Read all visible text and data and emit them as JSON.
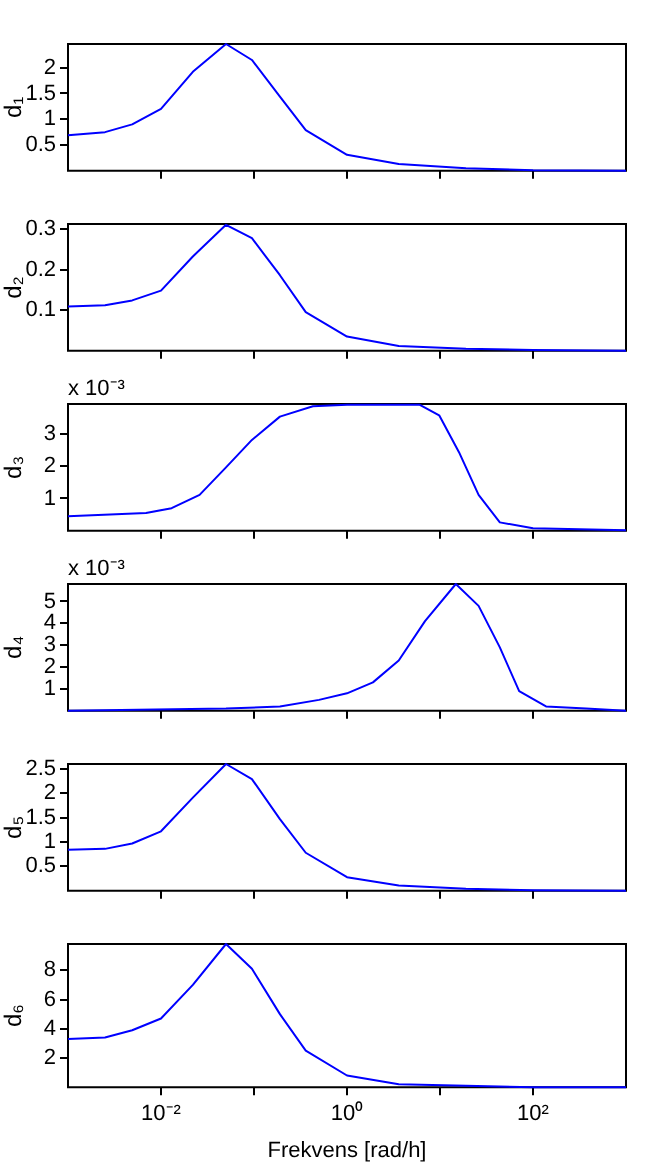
{
  "chart_data": [
    {
      "type": "line",
      "ylabel": "d₁",
      "x": [
        0.001,
        0.0025,
        0.0049,
        0.01,
        0.022,
        0.05,
        0.095,
        0.19,
        0.36,
        1,
        3.6,
        19,
        100,
        1000
      ],
      "series": [
        {
          "color": "#0000ff",
          "values": [
            0.69,
            0.75,
            0.9,
            1.2,
            1.92,
            2.46,
            2.15,
            1.44,
            0.79,
            0.31,
            0.13,
            0.05,
            0.01,
            0
          ]
        }
      ],
      "log": "x",
      "xlim": [
        0.001,
        1000
      ],
      "xticks": [
        {
          "value": 0.01,
          "label": null
        },
        {
          "value": 0.1,
          "label": null
        },
        {
          "value": 1,
          "label": null
        },
        {
          "value": 10,
          "label": null
        },
        {
          "value": 100,
          "label": null
        }
      ],
      "ylim": [
        0,
        2.46
      ],
      "yticks": [
        0.5,
        1,
        1.5,
        2
      ],
      "tick_labels": "y",
      "marker": "none"
    },
    {
      "type": "line",
      "ylabel": "d₂",
      "x": [
        0.001,
        0.0025,
        0.0049,
        0.01,
        0.022,
        0.05,
        0.095,
        0.19,
        0.36,
        1,
        3.6,
        19,
        100,
        1000
      ],
      "series": [
        {
          "color": "#0000ff",
          "values": [
            0.109,
            0.112,
            0.124,
            0.148,
            0.232,
            0.31,
            0.277,
            0.186,
            0.095,
            0.035,
            0.012,
            0.005,
            0.002,
            0
          ]
        }
      ],
      "log": "x",
      "xlim": [
        0.001,
        1000
      ],
      "xticks": [
        {
          "value": 0.01,
          "label": null
        },
        {
          "value": 0.1,
          "label": null
        },
        {
          "value": 1,
          "label": null
        },
        {
          "value": 10,
          "label": null
        },
        {
          "value": 100,
          "label": null
        }
      ],
      "ylim": [
        0,
        0.312
      ],
      "yticks": [
        0.1,
        0.2,
        0.3
      ],
      "tick_labels": "y",
      "marker": "none"
    },
    {
      "type": "line",
      "ylabel": "d₃",
      "annotations": [
        "x 10⁻³"
      ],
      "x": [
        0.001,
        0.0069,
        0.013,
        0.026,
        0.05,
        0.095,
        0.19,
        0.43,
        1,
        6,
        9.8,
        16,
        26,
        44,
        100,
        1000
      ],
      "series": [
        {
          "color": "#0000ff",
          "values": [
            0.45,
            0.55,
            0.7,
            1.11,
            1.96,
            2.81,
            3.53,
            3.85,
            3.9,
            3.9,
            3.57,
            2.43,
            1.11,
            0.26,
            0.08,
            0.02
          ]
        }
      ],
      "log": "x",
      "xlim": [
        0.001,
        1000
      ],
      "xticks": [
        {
          "value": 0.01,
          "label": null
        },
        {
          "value": 0.1,
          "label": null
        },
        {
          "value": 1,
          "label": null
        },
        {
          "value": 10,
          "label": null
        },
        {
          "value": 100,
          "label": null
        }
      ],
      "ylim": [
        0,
        3.92
      ],
      "yticks": [
        1,
        2,
        3
      ],
      "tick_labels": "y",
      "marker": "none"
    },
    {
      "type": "line",
      "ylabel": "d₄",
      "annotations": [
        "x 10⁻³"
      ],
      "x": [
        0.001,
        0.05,
        0.19,
        0.5,
        1,
        1.9,
        3.6,
        6.9,
        14.8,
        26,
        44,
        71,
        138,
        372,
        1000
      ],
      "series": [
        {
          "color": "#0000ff",
          "values": [
            0,
            0.1,
            0.2,
            0.5,
            0.8,
            1.3,
            2.3,
            4.1,
            5.8,
            4.8,
            2.9,
            0.9,
            0.2,
            0.1,
            0
          ]
        }
      ],
      "log": "x",
      "xlim": [
        0.001,
        1000
      ],
      "xticks": [
        {
          "value": 0.01,
          "label": null
        },
        {
          "value": 0.1,
          "label": null
        },
        {
          "value": 1,
          "label": null
        },
        {
          "value": 10,
          "label": null
        },
        {
          "value": 100,
          "label": null
        }
      ],
      "ylim": [
        0,
        5.8
      ],
      "yticks": [
        1,
        2,
        3,
        4,
        5
      ],
      "tick_labels": "y",
      "marker": "none"
    },
    {
      "type": "line",
      "ylabel": "d₅",
      "x": [
        0.001,
        0.0025,
        0.0049,
        0.01,
        0.022,
        0.05,
        0.095,
        0.19,
        0.36,
        1,
        3.6,
        19,
        100,
        1000
      ],
      "series": [
        {
          "color": "#0000ff",
          "values": [
            0.84,
            0.86,
            0.97,
            1.22,
            1.91,
            2.6,
            2.29,
            1.47,
            0.78,
            0.28,
            0.11,
            0.04,
            0.01,
            0
          ]
        }
      ],
      "log": "x",
      "xlim": [
        0.001,
        1000
      ],
      "xticks": [
        {
          "value": 0.01,
          "label": null
        },
        {
          "value": 0.1,
          "label": null
        },
        {
          "value": 1,
          "label": null
        },
        {
          "value": 10,
          "label": null
        },
        {
          "value": 100,
          "label": null
        }
      ],
      "ylim": [
        0,
        2.6
      ],
      "yticks": [
        0.5,
        1,
        1.5,
        2,
        2.5
      ],
      "tick_labels": "y",
      "marker": "none"
    },
    {
      "type": "line",
      "ylabel": "d₆",
      "xlabel": "Frekvens [rad/h]",
      "x": [
        0.001,
        0.0025,
        0.0049,
        0.01,
        0.022,
        0.05,
        0.095,
        0.19,
        0.36,
        1,
        3.6,
        19,
        100,
        1000
      ],
      "series": [
        {
          "color": "#0000ff",
          "values": [
            3.3,
            3.4,
            3.9,
            4.7,
            7,
            9.8,
            8.1,
            5,
            2.5,
            0.8,
            0.2,
            0.1,
            0,
            0
          ]
        }
      ],
      "log": "x",
      "xlim": [
        0.001,
        1000
      ],
      "xticks": [
        {
          "value": 0.01,
          "label": "10⁻²"
        },
        {
          "value": 0.1,
          "label": null
        },
        {
          "value": 1,
          "label": "10⁰"
        },
        {
          "value": 10,
          "label": null
        },
        {
          "value": 100,
          "label": "10²"
        }
      ],
      "ylim": [
        0,
        9.8
      ],
      "yticks": [
        2,
        4,
        6,
        8
      ],
      "marker": "none"
    }
  ]
}
